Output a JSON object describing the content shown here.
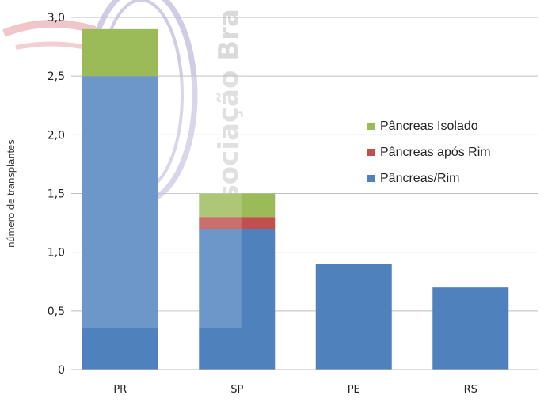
{
  "chart_data": {
    "type": "bar",
    "stacked": true,
    "categories": [
      "PR",
      "SP",
      "PE",
      "RS"
    ],
    "series": [
      {
        "name": "Pâncreas/Rim",
        "color": "#4F81BD",
        "values": [
          2.5,
          1.2,
          0.9,
          0.7
        ]
      },
      {
        "name": "Pâncreas após Rim",
        "color": "#C0504D",
        "values": [
          0,
          0.1,
          0,
          0
        ]
      },
      {
        "name": "Pâncreas Isolado",
        "color": "#9BBB59",
        "values": [
          0.4,
          0.2,
          0,
          0
        ]
      }
    ],
    "legend_order": [
      2,
      1,
      0
    ],
    "ylabel": "número de transplantes",
    "xlabel": "",
    "ylim": [
      0,
      3.0
    ],
    "yticks": [
      "0",
      "0,5",
      "1,0",
      "1,5",
      "2,0",
      "2,5",
      "3,0"
    ],
    "grid": true,
    "legend_position": "right"
  },
  "watermark": {
    "text": "Associação Bra"
  }
}
